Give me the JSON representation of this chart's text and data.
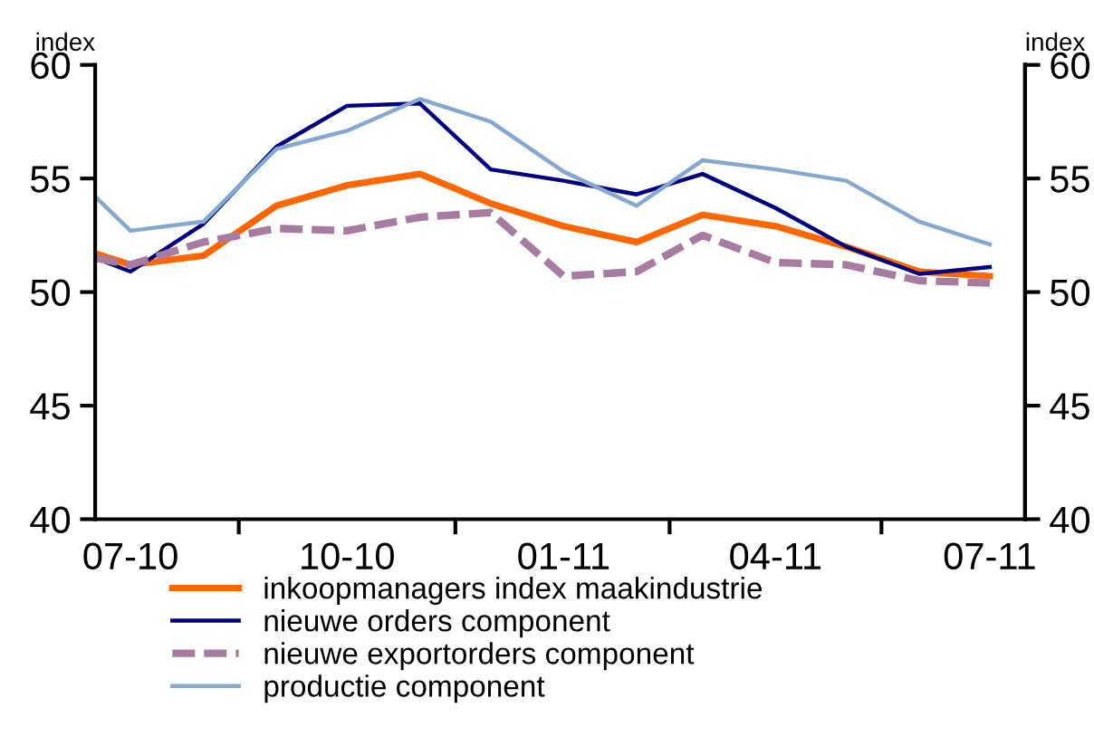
{
  "chart_data": {
    "type": "line",
    "ylabel": "index",
    "y2label": "index",
    "x": [
      "2010-06-16",
      "2010-07",
      "2010-08",
      "2010-09",
      "2010-10",
      "2010-11",
      "2010-12",
      "2011-01",
      "2011-02",
      "2011-03",
      "2011-04",
      "2011-05",
      "2011-06",
      "2011-07"
    ],
    "series": [
      {
        "name": "inkoopmanagers index maakindustrie",
        "color": "#ff6600",
        "line_style": "solid",
        "values": [
          51.7,
          51.2,
          51.6,
          53.8,
          54.7,
          55.2,
          53.9,
          52.9,
          52.2,
          53.4,
          52.9,
          52.0,
          50.9,
          50.7
        ]
      },
      {
        "name": "nieuwe orders component",
        "color": "#000080",
        "line_style": "solid",
        "values": [
          51.5,
          50.9,
          53.0,
          56.4,
          58.2,
          58.3,
          55.4,
          54.9,
          54.3,
          55.2,
          53.7,
          52.0,
          50.8,
          51.1
        ]
      },
      {
        "name": "nieuwe exportorders component",
        "color": "#a87ca0",
        "line_style": "dashed",
        "values": [
          51.5,
          51.2,
          52.2,
          52.8,
          52.7,
          53.3,
          53.5,
          50.7,
          50.9,
          52.5,
          51.3,
          51.2,
          50.5,
          50.4
        ]
      },
      {
        "name": "productie component",
        "color": "#85a8d2",
        "line_style": "solid",
        "values": [
          54.2,
          52.7,
          53.1,
          56.3,
          57.1,
          58.5,
          57.5,
          55.3,
          53.8,
          55.8,
          55.4,
          54.9,
          53.1,
          52.1
        ]
      }
    ],
    "xlim": [
      "2010-06-16",
      "2011-07-16"
    ],
    "xticks": [
      {
        "value": "2010-07-01",
        "label": "07-10"
      },
      {
        "value": "2010-08-16",
        "label": null
      },
      {
        "value": "2010-10-01",
        "label": "10-10"
      },
      {
        "value": "2010-11-16",
        "label": null
      },
      {
        "value": "2011-01-01",
        "label": "01-11"
      },
      {
        "value": "2011-02-15",
        "label": null
      },
      {
        "value": "2011-04-01",
        "label": "04-11"
      },
      {
        "value": "2011-05-16",
        "label": null
      },
      {
        "value": "2011-07-01",
        "label": "07-11"
      }
    ],
    "ylim": [
      40,
      60
    ],
    "yticks": [
      40,
      45,
      50,
      55,
      60
    ],
    "y2lim": [
      40,
      60
    ],
    "y2ticks": [
      40,
      45,
      50,
      55,
      60
    ],
    "grid": false,
    "legend": "bottom",
    "marker": "none"
  }
}
